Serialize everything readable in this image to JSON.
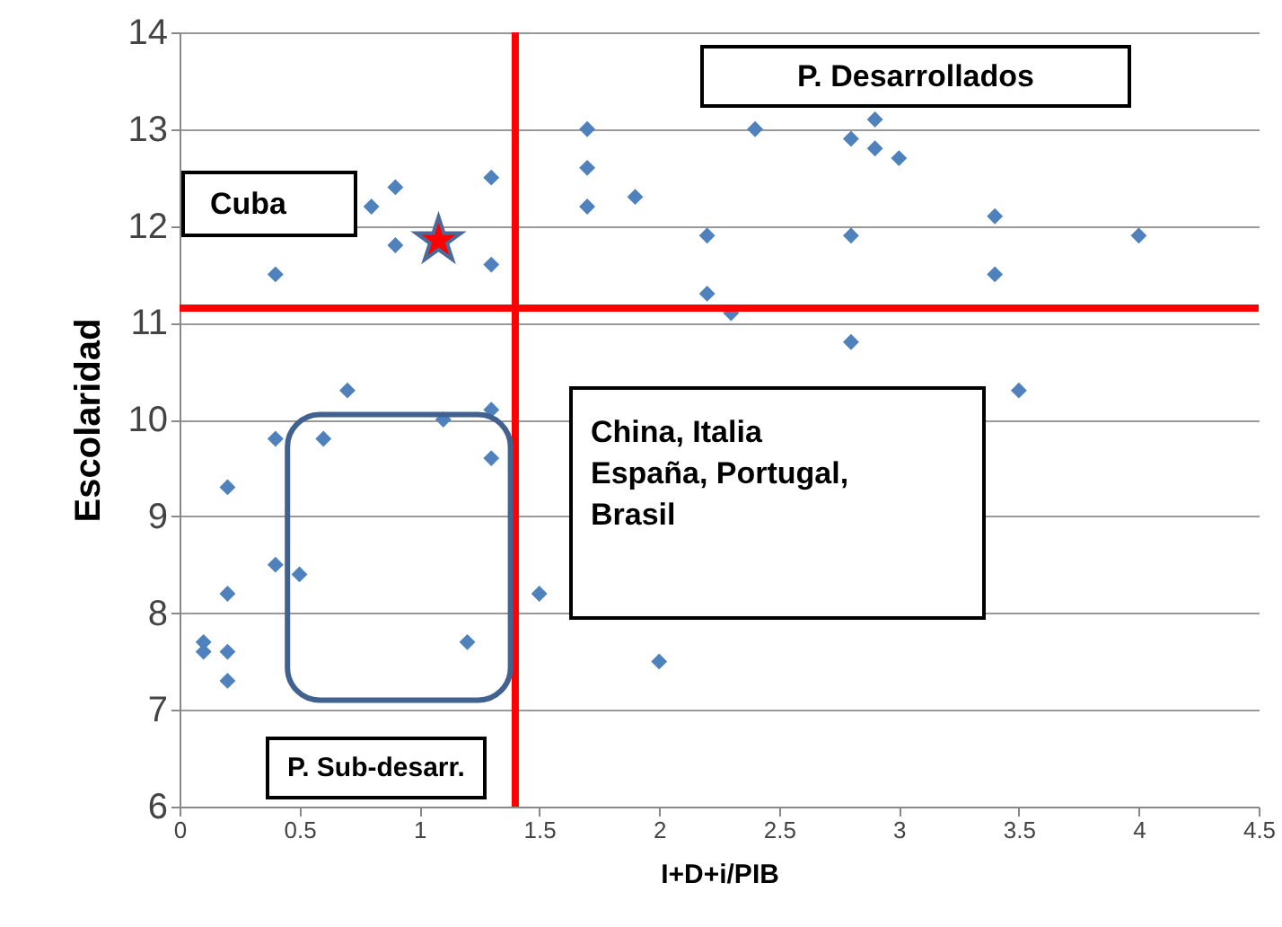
{
  "chart_data": {
    "type": "scatter",
    "xlabel": "I+D+i/PIB",
    "ylabel": "Escolaridad",
    "annotations": [
      "P. Desarrollados",
      "China, Italia\nEspaña, Portugal,\nBrasil",
      "P. Sub-desarr."
    ],
    "series": [
      {
        "color": "#4f81bd",
        "marker": "diamond",
        "x": [
          0.1,
          0.1,
          0.2,
          0.2,
          0.2,
          0.2,
          0.4,
          0.5,
          0.4,
          0.6,
          0.7,
          1.1,
          1.3,
          1.3,
          1.2,
          1.5,
          2.0,
          0.4,
          0.9,
          0.8,
          0.9,
          1.3,
          1.3,
          1.7,
          1.7,
          1.7,
          1.9,
          2.2,
          2.2,
          2.3,
          2.4,
          2.8,
          2.9,
          2.9,
          3.0,
          2.8,
          2.8,
          3.4,
          3.4,
          3.5,
          4.0
        ],
        "values": [
          7.7,
          7.6,
          7.6,
          7.3,
          8.2,
          9.3,
          8.5,
          8.4,
          9.8,
          9.8,
          10.3,
          10.0,
          10.1,
          9.6,
          7.7,
          8.2,
          7.5,
          11.5,
          11.8,
          12.2,
          12.4,
          12.5,
          11.6,
          13.0,
          12.6,
          12.2,
          12.3,
          11.9,
          11.3,
          11.1,
          13.0,
          12.9,
          13.1,
          12.8,
          12.7,
          11.9,
          10.8,
          12.1,
          11.5,
          10.3,
          11.9
        ]
      },
      {
        "name": "Cuba",
        "color": "#ff0000",
        "marker": "star",
        "x": [
          1.08
        ],
        "values": [
          11.85
        ]
      }
    ],
    "ref_lines": [
      {
        "axis": "x",
        "value": 1.4,
        "color": "#ff0000"
      },
      {
        "axis": "y",
        "value": 11.15,
        "color": "#ff0000"
      }
    ],
    "xlim": [
      0,
      4.5
    ],
    "xticks": [
      0,
      0.5,
      1,
      1.5,
      2,
      2.5,
      3,
      3.5,
      4,
      4.5
    ],
    "ylim": [
      6,
      14
    ],
    "yticks": [
      6,
      7,
      8,
      9,
      10,
      11,
      12,
      13,
      14
    ],
    "grid": "y",
    "legend": false
  }
}
